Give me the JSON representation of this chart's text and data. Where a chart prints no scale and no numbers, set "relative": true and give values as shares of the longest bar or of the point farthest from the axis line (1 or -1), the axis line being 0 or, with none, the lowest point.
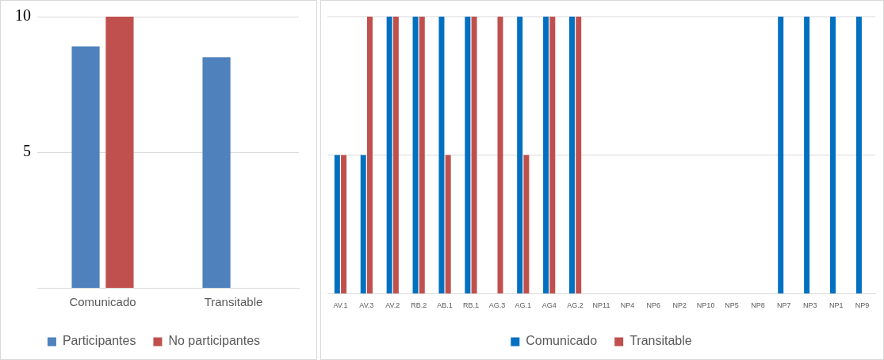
{
  "chart_data": [
    {
      "type": "bar",
      "categories": [
        "Comunicado",
        "Transitable"
      ],
      "series": [
        {
          "name": "Participantes",
          "color": "#4f81bd",
          "values": [
            8.9,
            8.5
          ]
        },
        {
          "name": "No participantes",
          "color": "#c0504d",
          "values": [
            10,
            null
          ]
        }
      ],
      "ylim": [
        0,
        10
      ],
      "yticks": [
        5,
        10
      ],
      "grid": "y",
      "legend": "bottom"
    },
    {
      "type": "bar",
      "relative": true,
      "categories": [
        "AV.1",
        "AV.3",
        "AV.2",
        "RB.2",
        "AB.1",
        "RB.1",
        "AG.3",
        "AG.1",
        "AG4",
        "AG.2",
        "NP11",
        "NP4",
        "NP6",
        "NP2",
        "NP10",
        "NP5",
        "NP8",
        "NP7",
        "NP3",
        "NP1",
        "NP9"
      ],
      "series": [
        {
          "name": "Comunicado",
          "color": "#0070c0",
          "values": [
            0.5,
            0.5,
            1,
            1,
            1,
            1,
            0,
            1,
            1,
            1,
            0,
            0,
            0,
            0,
            0,
            0,
            0,
            1,
            1,
            1,
            1
          ]
        },
        {
          "name": "Transitable",
          "color": "#c0504d",
          "values": [
            0.5,
            1,
            1,
            1,
            0.5,
            1,
            1,
            0.5,
            1,
            1,
            0,
            0,
            0,
            0,
            0,
            0,
            0,
            0,
            0,
            0,
            0
          ]
        }
      ],
      "ref_lines": [
        {
          "axis": "y",
          "value": 0.5,
          "color": "#d9d9d9"
        },
        {
          "axis": "y",
          "value": 1,
          "color": "#d9d9d9"
        }
      ],
      "legend": "bottom"
    }
  ]
}
